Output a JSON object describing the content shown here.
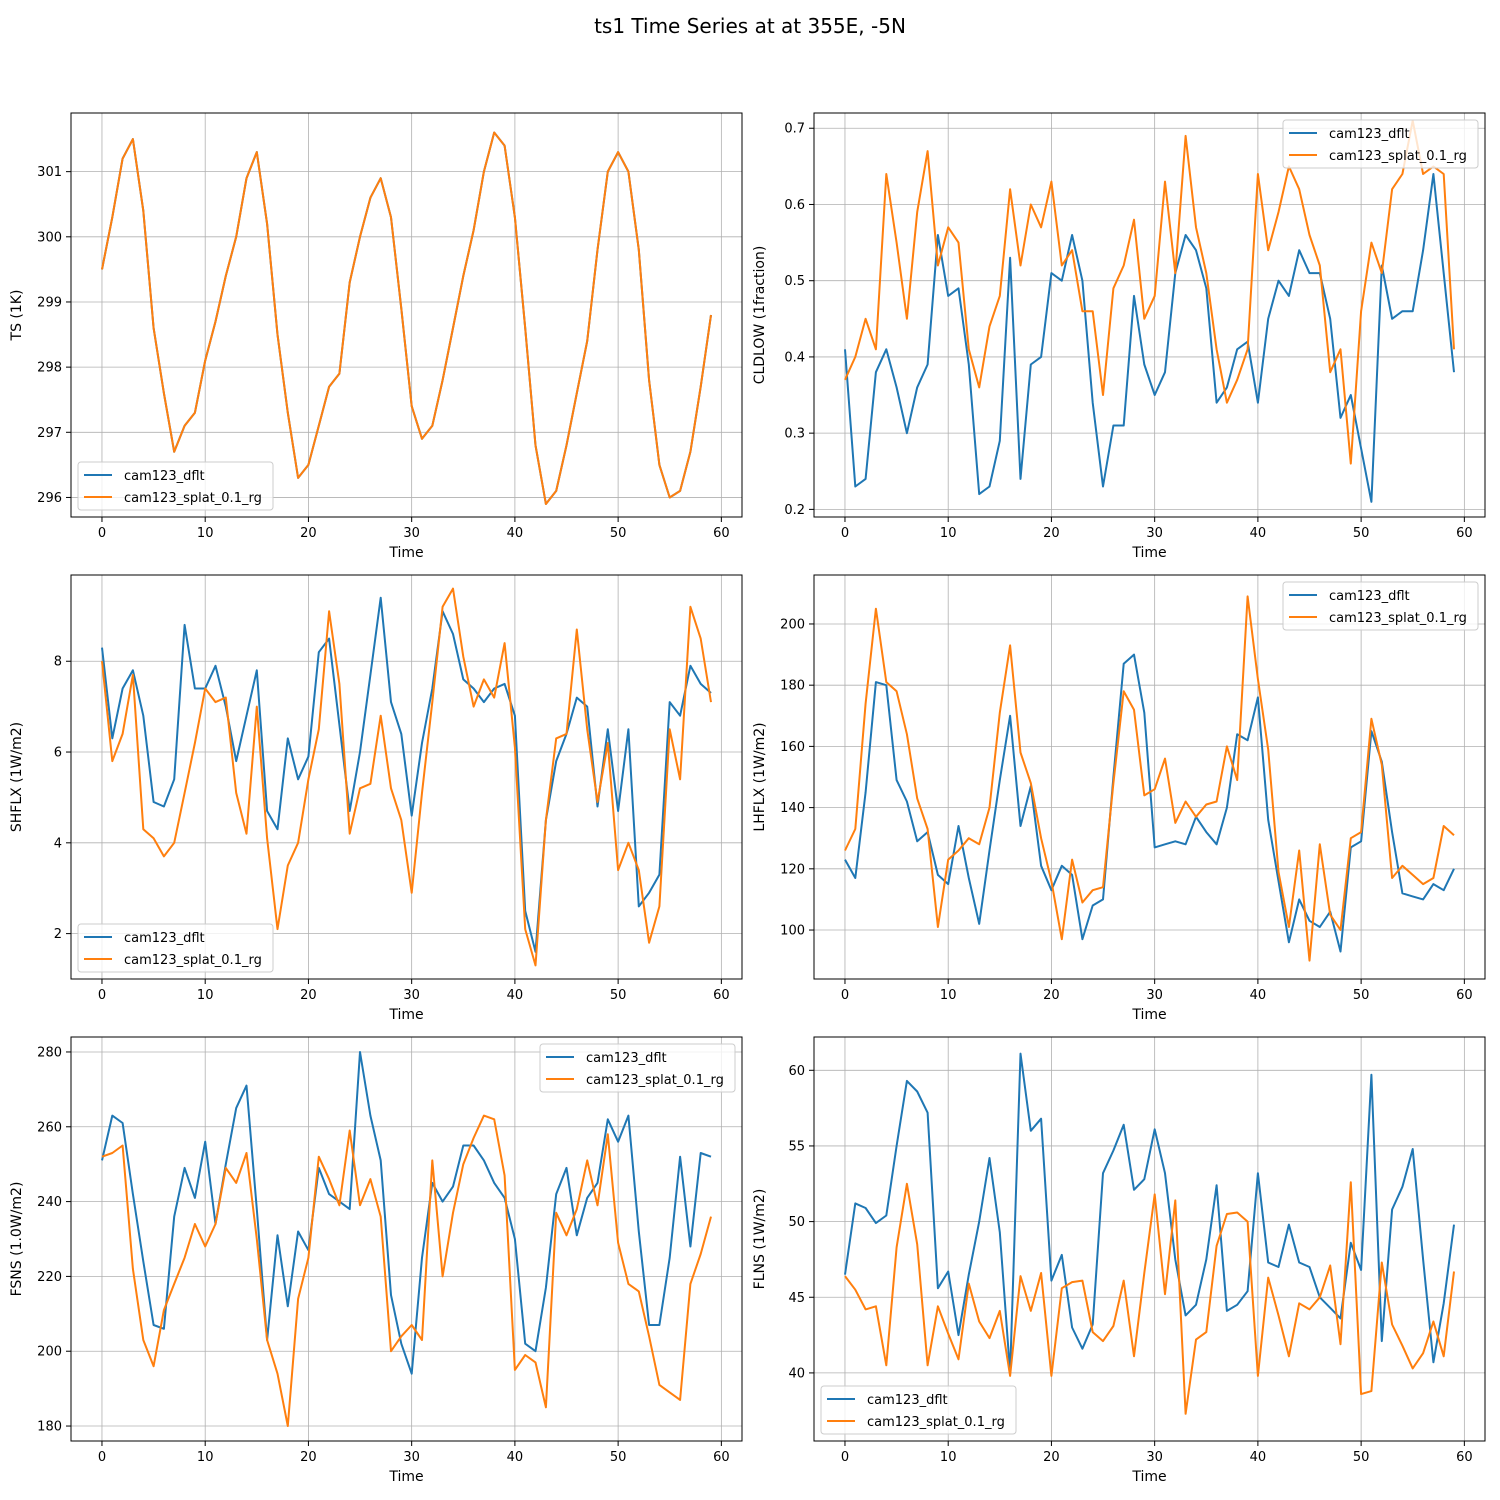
{
  "figure_title": "ts1 Time Series at at 355E, -5N",
  "colors": {
    "dflt": "#1f77b4",
    "splat": "#ff7f0e",
    "grid": "#b0b0b0",
    "axis": "#000000"
  },
  "chart_data": [
    {
      "type": "line",
      "xlabel": "Time",
      "ylabel": "TS (1K)",
      "xlim": [
        -3,
        62
      ],
      "ylim": [
        295.7,
        301.9
      ],
      "xticks": [
        0,
        10,
        20,
        30,
        40,
        50,
        60
      ],
      "yticks": [
        296,
        297,
        298,
        299,
        300,
        301
      ],
      "legend_loc": "lower-left",
      "series": [
        {
          "name": "cam123_dflt",
          "values": [
            299.5,
            300.3,
            301.2,
            301.5,
            300.4,
            298.6,
            297.6,
            296.7,
            297.1,
            297.3,
            298.1,
            298.7,
            299.4,
            300.0,
            300.9,
            301.3,
            300.2,
            298.5,
            297.3,
            296.3,
            296.5,
            297.1,
            297.7,
            297.9,
            299.3,
            300.0,
            300.6,
            300.9,
            300.3,
            298.9,
            297.4,
            296.9,
            297.1,
            297.8,
            298.6,
            299.4,
            300.1,
            301.0,
            301.6,
            301.4,
            300.3,
            298.6,
            296.8,
            295.9,
            296.1,
            296.8,
            297.6,
            298.4,
            299.8,
            301.0,
            301.3,
            301.0,
            299.8,
            297.8,
            296.5,
            296.0,
            296.1,
            296.7,
            297.7,
            298.8
          ]
        },
        {
          "name": "cam123_splat_0.1_rg",
          "values": [
            299.5,
            300.3,
            301.2,
            301.5,
            300.4,
            298.6,
            297.6,
            296.7,
            297.1,
            297.3,
            298.1,
            298.7,
            299.4,
            300.0,
            300.9,
            301.3,
            300.2,
            298.5,
            297.3,
            296.3,
            296.5,
            297.1,
            297.7,
            297.9,
            299.3,
            300.0,
            300.6,
            300.9,
            300.3,
            298.9,
            297.4,
            296.9,
            297.1,
            297.8,
            298.6,
            299.4,
            300.1,
            301.0,
            301.6,
            301.4,
            300.3,
            298.6,
            296.8,
            295.9,
            296.1,
            296.8,
            297.6,
            298.4,
            299.8,
            301.0,
            301.3,
            301.0,
            299.8,
            297.8,
            296.5,
            296.0,
            296.1,
            296.7,
            297.7,
            298.8
          ]
        }
      ]
    },
    {
      "type": "line",
      "xlabel": "Time",
      "ylabel": "CLDLOW (1fraction)",
      "xlim": [
        -3,
        62
      ],
      "ylim": [
        0.19,
        0.72
      ],
      "xticks": [
        0,
        10,
        20,
        30,
        40,
        50,
        60
      ],
      "yticks": [
        0.2,
        0.3,
        0.4,
        0.5,
        0.6,
        0.7
      ],
      "legend_loc": "upper-right",
      "series": [
        {
          "name": "cam123_dflt",
          "values": [
            0.41,
            0.23,
            0.24,
            0.38,
            0.41,
            0.36,
            0.3,
            0.36,
            0.39,
            0.56,
            0.48,
            0.49,
            0.39,
            0.22,
            0.23,
            0.29,
            0.53,
            0.24,
            0.39,
            0.4,
            0.51,
            0.5,
            0.56,
            0.5,
            0.34,
            0.23,
            0.31,
            0.31,
            0.48,
            0.39,
            0.35,
            0.38,
            0.51,
            0.56,
            0.54,
            0.49,
            0.34,
            0.36,
            0.41,
            0.42,
            0.34,
            0.45,
            0.5,
            0.48,
            0.54,
            0.51,
            0.51,
            0.45,
            0.32,
            0.35,
            0.28,
            0.21,
            0.52,
            0.45,
            0.46,
            0.46,
            0.54,
            0.64,
            0.51,
            0.38
          ]
        },
        {
          "name": "cam123_splat_0.1_rg",
          "values": [
            0.37,
            0.4,
            0.45,
            0.41,
            0.64,
            0.55,
            0.45,
            0.59,
            0.67,
            0.52,
            0.57,
            0.55,
            0.41,
            0.36,
            0.44,
            0.48,
            0.62,
            0.52,
            0.6,
            0.57,
            0.63,
            0.52,
            0.54,
            0.46,
            0.46,
            0.35,
            0.49,
            0.52,
            0.58,
            0.45,
            0.48,
            0.63,
            0.51,
            0.69,
            0.57,
            0.51,
            0.41,
            0.34,
            0.37,
            0.41,
            0.64,
            0.54,
            0.59,
            0.65,
            0.62,
            0.56,
            0.52,
            0.38,
            0.41,
            0.26,
            0.46,
            0.55,
            0.51,
            0.62,
            0.64,
            0.71,
            0.64,
            0.65,
            0.64,
            0.41
          ]
        }
      ]
    },
    {
      "type": "line",
      "xlabel": "Time",
      "ylabel": "SHFLX (1W/m2)",
      "xlim": [
        -3,
        62
      ],
      "ylim": [
        1.0,
        9.9
      ],
      "xticks": [
        0,
        10,
        20,
        30,
        40,
        50,
        60
      ],
      "yticks": [
        2,
        4,
        6,
        8
      ],
      "legend_loc": "lower-left",
      "series": [
        {
          "name": "cam123_dflt",
          "values": [
            8.3,
            6.3,
            7.4,
            7.8,
            6.8,
            4.9,
            4.8,
            5.4,
            8.8,
            7.4,
            7.4,
            7.9,
            7.0,
            5.8,
            6.8,
            7.8,
            4.7,
            4.3,
            6.3,
            5.4,
            5.9,
            8.2,
            8.5,
            6.6,
            4.7,
            6.0,
            7.7,
            9.4,
            7.1,
            6.4,
            4.6,
            6.2,
            7.4,
            9.1,
            8.6,
            7.6,
            7.4,
            7.1,
            7.4,
            7.5,
            6.8,
            2.5,
            1.6,
            4.5,
            5.8,
            6.4,
            7.2,
            7.0,
            4.8,
            6.5,
            4.7,
            6.5,
            2.6,
            2.9,
            3.3,
            7.1,
            6.8,
            7.9,
            7.5,
            7.3
          ]
        },
        {
          "name": "cam123_splat_0.1_rg",
          "values": [
            8.0,
            5.8,
            6.4,
            7.7,
            4.3,
            4.1,
            3.7,
            4.0,
            5.1,
            6.2,
            7.4,
            7.1,
            7.2,
            5.1,
            4.2,
            7.0,
            4.1,
            2.1,
            3.5,
            4.0,
            5.4,
            6.5,
            9.1,
            7.5,
            4.2,
            5.2,
            5.3,
            6.8,
            5.2,
            4.5,
            2.9,
            5.1,
            7.1,
            9.2,
            9.6,
            8.1,
            7.0,
            7.6,
            7.2,
            8.4,
            6.1,
            2.1,
            1.3,
            4.5,
            6.3,
            6.4,
            8.7,
            6.5,
            4.9,
            6.2,
            3.4,
            4.0,
            3.4,
            1.8,
            2.6,
            6.5,
            5.4,
            9.2,
            8.5,
            7.1
          ]
        }
      ]
    },
    {
      "type": "line",
      "xlabel": "Time",
      "ylabel": "LHFLX (1W/m2)",
      "xlim": [
        -3,
        62
      ],
      "ylim": [
        84,
        216
      ],
      "xticks": [
        0,
        10,
        20,
        30,
        40,
        50,
        60
      ],
      "yticks": [
        100,
        120,
        140,
        160,
        180,
        200
      ],
      "legend_loc": "upper-right",
      "series": [
        {
          "name": "cam123_dflt",
          "values": [
            123,
            117,
            145,
            181,
            180,
            149,
            142,
            129,
            132,
            118,
            115,
            134,
            117,
            102,
            126,
            149,
            170,
            134,
            147,
            121,
            113,
            121,
            118,
            97,
            108,
            110,
            150,
            187,
            190,
            171,
            127,
            128,
            129,
            128,
            137,
            132,
            128,
            140,
            164,
            162,
            176,
            136,
            116,
            96,
            110,
            103,
            101,
            106,
            93,
            127,
            129,
            165,
            155,
            132,
            112,
            111,
            110,
            115,
            113,
            120
          ]
        },
        {
          "name": "cam123_splat_0.1_rg",
          "values": [
            126,
            133,
            174,
            205,
            181,
            178,
            164,
            143,
            133,
            101,
            123,
            126,
            130,
            128,
            140,
            171,
            193,
            158,
            148,
            130,
            116,
            97,
            123,
            109,
            113,
            114,
            148,
            178,
            172,
            144,
            146,
            156,
            135,
            142,
            137,
            141,
            142,
            160,
            149,
            209,
            182,
            159,
            119,
            101,
            126,
            90,
            128,
            105,
            100,
            130,
            132,
            169,
            154,
            117,
            121,
            118,
            115,
            117,
            134,
            131
          ]
        }
      ]
    },
    {
      "type": "line",
      "xlabel": "Time",
      "ylabel": "FSNS (1.0W/m2)",
      "xlim": [
        -3,
        62
      ],
      "ylim": [
        176,
        284
      ],
      "xticks": [
        0,
        10,
        20,
        30,
        40,
        50,
        60
      ],
      "yticks": [
        180,
        200,
        220,
        240,
        260,
        280
      ],
      "legend_loc": "upper-right",
      "series": [
        {
          "name": "cam123_dflt",
          "values": [
            251,
            263,
            261,
            242,
            224,
            207,
            206,
            236,
            249,
            241,
            256,
            234,
            250,
            265,
            271,
            238,
            203,
            231,
            212,
            232,
            227,
            249,
            242,
            240,
            238,
            280,
            263,
            251,
            215,
            202,
            194,
            225,
            245,
            240,
            244,
            255,
            255,
            251,
            245,
            241,
            230,
            202,
            200,
            217,
            242,
            249,
            231,
            241,
            245,
            262,
            256,
            263,
            232,
            207,
            207,
            225,
            252,
            228,
            253,
            252
          ]
        },
        {
          "name": "cam123_splat_0.1_rg",
          "values": [
            252,
            253,
            255,
            222,
            203,
            196,
            211,
            218,
            225,
            234,
            228,
            234,
            249,
            245,
            253,
            230,
            203,
            194,
            180,
            214,
            225,
            252,
            246,
            239,
            259,
            239,
            246,
            236,
            200,
            204,
            207,
            203,
            251,
            220,
            237,
            250,
            257,
            263,
            262,
            247,
            195,
            199,
            197,
            185,
            237,
            231,
            238,
            251,
            239,
            258,
            229,
            218,
            216,
            204,
            191,
            189,
            187,
            218,
            226,
            236
          ]
        }
      ]
    },
    {
      "type": "line",
      "xlabel": "Time",
      "ylabel": "FLNS (1W/m2)",
      "xlim": [
        -3,
        62
      ],
      "ylim": [
        35.5,
        62.2
      ],
      "xticks": [
        0,
        10,
        20,
        30,
        40,
        50,
        60
      ],
      "yticks": [
        40,
        45,
        50,
        55,
        60
      ],
      "legend_loc": "lower-left",
      "series": [
        {
          "name": "cam123_dflt",
          "values": [
            46.5,
            51.2,
            50.9,
            49.9,
            50.4,
            55.0,
            59.3,
            58.6,
            57.2,
            45.6,
            46.7,
            42.5,
            46.5,
            50.0,
            54.2,
            49.3,
            40.0,
            61.1,
            56.0,
            56.8,
            46.1,
            47.8,
            43.0,
            41.6,
            43.2,
            53.2,
            54.7,
            56.4,
            52.1,
            52.8,
            56.1,
            53.2,
            47.5,
            43.8,
            44.5,
            47.5,
            52.4,
            44.1,
            44.5,
            45.4,
            53.2,
            47.3,
            47.0,
            49.8,
            47.3,
            47.0,
            45.0,
            44.3,
            43.6,
            48.6,
            46.8,
            59.7,
            42.1,
            50.8,
            52.3,
            54.8,
            47.5,
            40.7,
            44.6,
            49.8
          ]
        },
        {
          "name": "cam123_splat_0.1_rg",
          "values": [
            46.4,
            45.5,
            44.2,
            44.4,
            40.5,
            48.3,
            52.5,
            48.5,
            40.5,
            44.4,
            42.6,
            40.9,
            45.9,
            43.4,
            42.3,
            44.1,
            39.8,
            46.4,
            44.1,
            46.6,
            39.8,
            45.6,
            46.0,
            46.1,
            42.7,
            42.1,
            43.1,
            46.1,
            41.1,
            46.6,
            51.8,
            45.2,
            51.4,
            37.3,
            42.2,
            42.7,
            48.4,
            50.5,
            50.6,
            50.0,
            39.8,
            46.3,
            43.8,
            41.1,
            44.6,
            44.2,
            45.0,
            47.1,
            41.9,
            52.6,
            38.6,
            38.8,
            47.3,
            43.2,
            41.8,
            40.3,
            41.3,
            43.4,
            41.1,
            46.7
          ]
        }
      ]
    }
  ]
}
